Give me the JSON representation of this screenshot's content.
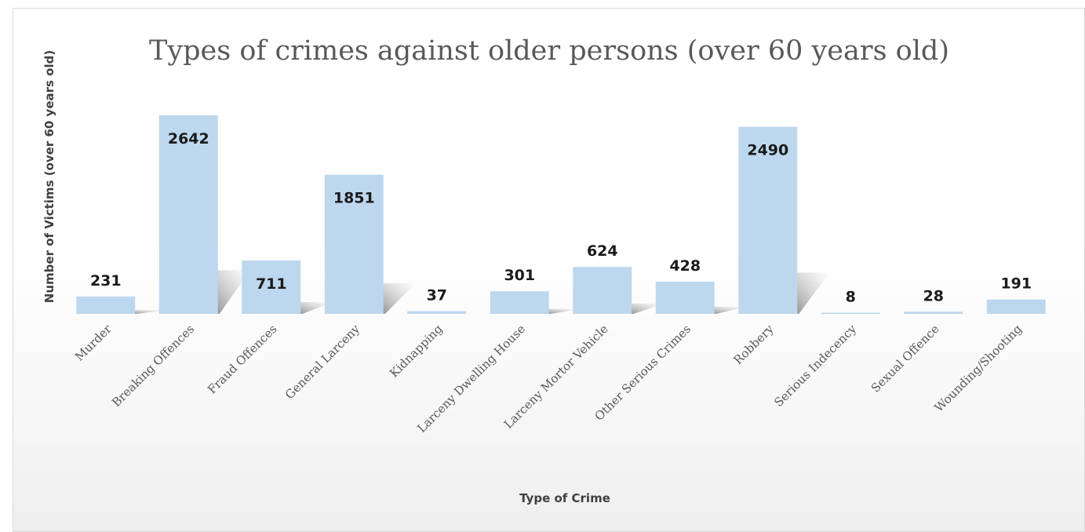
{
  "chart_data": {
    "type": "bar",
    "title": "Types of crimes against older persons (over 60 years old)",
    "xlabel": "Type of Crime",
    "ylabel": "Number of Victims (over 60 years old)",
    "categories": [
      "Murder",
      "Breaking Offences",
      "Fraud Offences",
      "General Larceny",
      "Kidnapping",
      "Larceny Dwelling House",
      "Larceny Mortor Vehicle",
      "Other Serious Crimes",
      "Robbery",
      "Serious Indecency",
      "Sexual Offence",
      "Wounding/Shooting"
    ],
    "values": [
      231,
      2642,
      711,
      1851,
      37,
      301,
      624,
      428,
      2490,
      8,
      28,
      191
    ],
    "data_labels": [
      "231",
      "2642",
      "711",
      "1851",
      "37",
      "301",
      "624",
      "428",
      "2490",
      "8",
      "28",
      "191"
    ],
    "ylim": [
      0,
      2642
    ],
    "grid": false,
    "legend": "none",
    "bar_color": "#bdd7ee"
  }
}
